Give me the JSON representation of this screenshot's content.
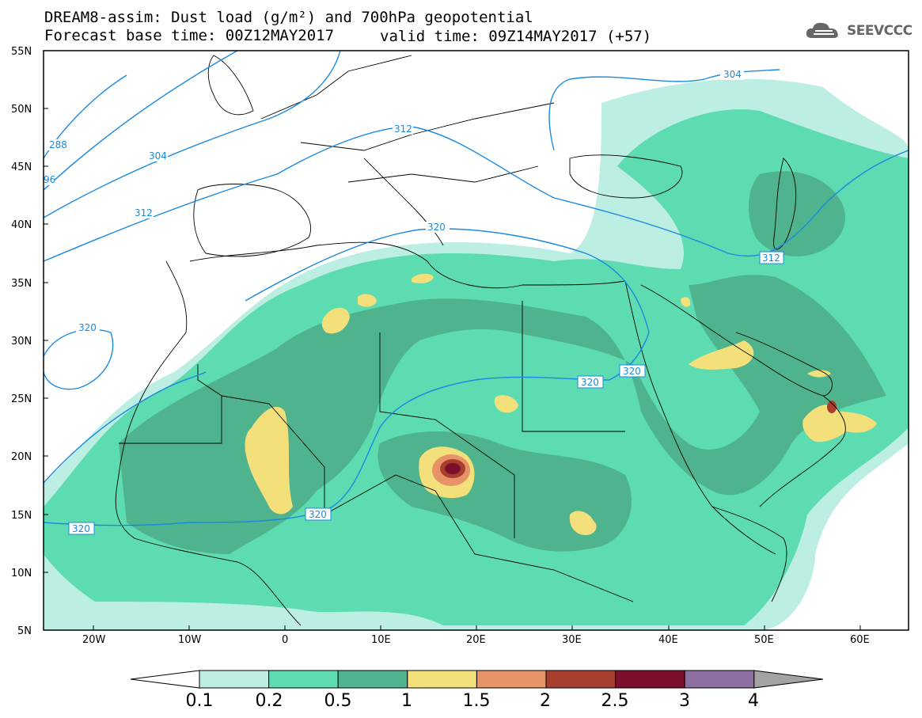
{
  "title": {
    "line1": "DREAM8-assim: Dust load (g/m²) and 700hPa geopotential",
    "line2": "Forecast base time: 00Z12MAY2017",
    "valid_time": "valid time: 09Z14MAY2017 (+57)"
  },
  "logo": {
    "text": "SEEVCCC",
    "icon": "cloud-icon"
  },
  "axes": {
    "lat_labels": [
      "55N",
      "50N",
      "45N",
      "40N",
      "35N",
      "30N",
      "25N",
      "20N",
      "15N",
      "10N",
      "5N"
    ],
    "lon_labels": [
      "20W",
      "10W",
      "0",
      "10E",
      "20E",
      "30E",
      "40E",
      "50E",
      "60E"
    ]
  },
  "geopotential_labels": [
    "288",
    "304",
    "96",
    "312",
    "312",
    "312",
    "304",
    "320",
    "320",
    "320",
    "320",
    "320",
    "320"
  ],
  "colorbar": {
    "labels": [
      "0.1",
      "0.2",
      "0.5",
      "1",
      "1.5",
      "2",
      "2.5",
      "3",
      "4"
    ],
    "colors": [
      "#ffffff",
      "#bdeee4",
      "#5cdcb0",
      "#4fb38e",
      "#f3e07a",
      "#e89268",
      "#a83f2e",
      "#7c0f2b",
      "#8d6ea0",
      "#a3a3a3"
    ]
  },
  "colors": {
    "contour": "#1a8ae0",
    "land_line": "#000000"
  }
}
